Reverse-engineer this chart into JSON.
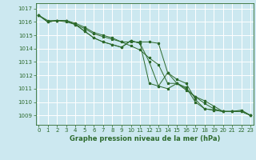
{
  "title": "Graphe pression niveau de la mer (hPa)",
  "bg_color": "#cce8f0",
  "grid_color": "#ffffff",
  "line_color": "#2d6a2d",
  "x_ticks": [
    0,
    1,
    2,
    3,
    4,
    5,
    6,
    7,
    8,
    9,
    10,
    11,
    12,
    13,
    14,
    15,
    16,
    17,
    18,
    19,
    20,
    21,
    22,
    23
  ],
  "y_ticks": [
    1009,
    1010,
    1011,
    1012,
    1013,
    1014,
    1015,
    1016,
    1017
  ],
  "ylim": [
    1008.3,
    1017.4
  ],
  "xlim": [
    -0.3,
    23.3
  ],
  "series": [
    [
      1016.5,
      1016.1,
      1016.1,
      1016.0,
      1015.8,
      1015.5,
      1015.1,
      1014.9,
      1014.7,
      1014.5,
      1014.2,
      1013.9,
      1013.3,
      1012.8,
      1011.4,
      1011.4,
      1010.9,
      1010.4,
      1009.9,
      1009.5,
      1009.3,
      1009.3,
      1009.3,
      1009.0
    ],
    [
      1016.5,
      1016.0,
      1016.1,
      1016.1,
      1015.9,
      1015.6,
      1015.2,
      1015.0,
      1014.8,
      1014.5,
      1014.5,
      1014.5,
      1014.5,
      1014.4,
      1012.2,
      1011.4,
      1011.0,
      1010.4,
      1010.1,
      1009.7,
      1009.3,
      1009.3,
      1009.4,
      1009.0
    ],
    [
      1016.5,
      1016.0,
      1016.1,
      1016.1,
      1015.8,
      1015.3,
      1014.8,
      1014.5,
      1014.3,
      1014.1,
      1014.6,
      1014.4,
      1011.4,
      1011.2,
      1012.2,
      1011.7,
      1011.4,
      1010.2,
      1009.5,
      1009.4,
      1009.3,
      1009.3,
      1009.3,
      1009.0
    ],
    [
      1016.5,
      1016.0,
      1016.1,
      1016.1,
      1015.8,
      1015.3,
      1014.8,
      1014.5,
      1014.3,
      1014.1,
      1014.6,
      1014.4,
      1013.0,
      1011.2,
      1011.0,
      1011.4,
      1011.1,
      1010.0,
      1009.5,
      1009.4,
      1009.3,
      1009.3,
      1009.3,
      1009.0
    ]
  ],
  "ylabel_fontsize": 5,
  "xlabel_fontsize": 6,
  "tick_labelsize": 5,
  "figsize": [
    3.2,
    2.0
  ],
  "dpi": 100
}
